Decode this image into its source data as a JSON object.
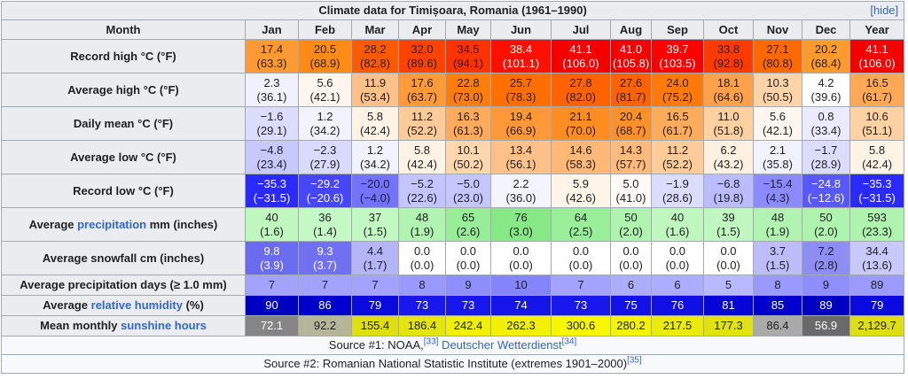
{
  "title": "Climate data for Timișoara, Romania (1961–1990)",
  "hide_label": "[hide]",
  "header": {
    "first": "Month",
    "months": [
      "Jan",
      "Feb",
      "Mar",
      "Apr",
      "May",
      "Jun",
      "Jul",
      "Aug",
      "Sep",
      "Oct",
      "Nov",
      "Dec",
      "Year"
    ]
  },
  "rows": [
    {
      "label_pre": "Record high °C (°F)",
      "label_link": "",
      "label_post": "",
      "two_line": true,
      "cells": [
        {
          "v": "17.4",
          "s": "(63.3)",
          "bg": "#ff9933",
          "fg": "#202122"
        },
        {
          "v": "20.5",
          "s": "(68.9)",
          "bg": "#ff8a15",
          "fg": "#202122"
        },
        {
          "v": "28.2",
          "s": "(82.8)",
          "bg": "#ff5a00",
          "fg": "#202122"
        },
        {
          "v": "32.0",
          "s": "(89.6)",
          "bg": "#ff4200",
          "fg": "#202122"
        },
        {
          "v": "34.5",
          "s": "(94.1)",
          "bg": "#ff3300",
          "fg": "#202122"
        },
        {
          "v": "38.4",
          "s": "(101.1)",
          "bg": "#ff1000",
          "fg": "#ffffff"
        },
        {
          "v": "41.1",
          "s": "(106.0)",
          "bg": "#f40000",
          "fg": "#ffffff"
        },
        {
          "v": "41.0",
          "s": "(105.8)",
          "bg": "#f40000",
          "fg": "#ffffff"
        },
        {
          "v": "39.7",
          "s": "(103.5)",
          "bg": "#fe0000",
          "fg": "#ffffff"
        },
        {
          "v": "33.8",
          "s": "(92.8)",
          "bg": "#ff3a00",
          "fg": "#202122"
        },
        {
          "v": "27.1",
          "s": "(80.8)",
          "bg": "#ff6a00",
          "fg": "#202122"
        },
        {
          "v": "20.2",
          "s": "(68.4)",
          "bg": "#ff9a2e",
          "fg": "#202122"
        },
        {
          "v": "41.1",
          "s": "(106.0)",
          "bg": "#f40000",
          "fg": "#ffffff"
        }
      ]
    },
    {
      "label_pre": "Average high °C (°F)",
      "label_link": "",
      "label_post": "",
      "two_line": true,
      "cells": [
        {
          "v": "2.3",
          "s": "(36.1)",
          "bg": "#f0f0ff",
          "fg": "#202122"
        },
        {
          "v": "5.6",
          "s": "(42.1)",
          "bg": "#fff6ef",
          "fg": "#202122"
        },
        {
          "v": "11.9",
          "s": "(53.4)",
          "bg": "#ffc08a",
          "fg": "#202122"
        },
        {
          "v": "17.6",
          "s": "(63.7)",
          "bg": "#ff9a3a",
          "fg": "#202122"
        },
        {
          "v": "22.8",
          "s": "(73.0)",
          "bg": "#ff7d0c",
          "fg": "#202122"
        },
        {
          "v": "25.7",
          "s": "(78.3)",
          "bg": "#ff6f00",
          "fg": "#202122"
        },
        {
          "v": "27.8",
          "s": "(82.0)",
          "bg": "#ff6200",
          "fg": "#202122"
        },
        {
          "v": "27.6",
          "s": "(81.7)",
          "bg": "#ff6300",
          "fg": "#202122"
        },
        {
          "v": "24.0",
          "s": "(75.2)",
          "bg": "#ff7a09",
          "fg": "#202122"
        },
        {
          "v": "18.1",
          "s": "(64.6)",
          "bg": "#ffa04a",
          "fg": "#202122"
        },
        {
          "v": "10.3",
          "s": "(50.5)",
          "bg": "#ffd3a8",
          "fg": "#202122"
        },
        {
          "v": "4.2",
          "s": "(39.6)",
          "bg": "#ffffff",
          "fg": "#202122"
        },
        {
          "v": "16.5",
          "s": "(61.7)",
          "bg": "#ffa956",
          "fg": "#202122"
        }
      ]
    },
    {
      "label_pre": "Daily mean °C (°F)",
      "label_link": "",
      "label_post": "",
      "two_line": true,
      "cells": [
        {
          "v": "−1.6",
          "s": "(29.1)",
          "bg": "#dcdcff",
          "fg": "#202122"
        },
        {
          "v": "1.2",
          "s": "(34.2)",
          "bg": "#f2f2ff",
          "fg": "#202122"
        },
        {
          "v": "5.8",
          "s": "(42.4)",
          "bg": "#fff3e6",
          "fg": "#202122"
        },
        {
          "v": "11.2",
          "s": "(52.2)",
          "bg": "#ffcc99",
          "fg": "#202122"
        },
        {
          "v": "16.3",
          "s": "(61.3)",
          "bg": "#ffab5d",
          "fg": "#202122"
        },
        {
          "v": "19.4",
          "s": "(66.9)",
          "bg": "#ff9838",
          "fg": "#202122"
        },
        {
          "v": "21.1",
          "s": "(70.0)",
          "bg": "#ff8d22",
          "fg": "#202122"
        },
        {
          "v": "20.4",
          "s": "(68.7)",
          "bg": "#ff912b",
          "fg": "#202122"
        },
        {
          "v": "16.5",
          "s": "(61.7)",
          "bg": "#ffab5c",
          "fg": "#202122"
        },
        {
          "v": "11.0",
          "s": "(51.8)",
          "bg": "#ffd0a0",
          "fg": "#202122"
        },
        {
          "v": "5.6",
          "s": "(42.1)",
          "bg": "#fff7ef",
          "fg": "#202122"
        },
        {
          "v": "0.8",
          "s": "(33.4)",
          "bg": "#ebebff",
          "fg": "#202122"
        },
        {
          "v": "10.6",
          "s": "(51.1)",
          "bg": "#ffd1a3",
          "fg": "#202122"
        }
      ]
    },
    {
      "label_pre": "Average low °C (°F)",
      "label_link": "",
      "label_post": "",
      "two_line": true,
      "cells": [
        {
          "v": "−4.8",
          "s": "(23.4)",
          "bg": "#c8c8ff",
          "fg": "#202122"
        },
        {
          "v": "−2.3",
          "s": "(27.9)",
          "bg": "#dadaff",
          "fg": "#202122"
        },
        {
          "v": "1.2",
          "s": "(34.2)",
          "bg": "#f2f2ff",
          "fg": "#202122"
        },
        {
          "v": "5.8",
          "s": "(42.4)",
          "bg": "#fff3e6",
          "fg": "#202122"
        },
        {
          "v": "10.1",
          "s": "(50.2)",
          "bg": "#ffd6ad",
          "fg": "#202122"
        },
        {
          "v": "13.4",
          "s": "(56.1)",
          "bg": "#ffc08a",
          "fg": "#202122"
        },
        {
          "v": "14.6",
          "s": "(58.3)",
          "bg": "#ffb878",
          "fg": "#202122"
        },
        {
          "v": "14.3",
          "s": "(57.7)",
          "bg": "#ffba7c",
          "fg": "#202122"
        },
        {
          "v": "11.2",
          "s": "(52.2)",
          "bg": "#ffcc99",
          "fg": "#202122"
        },
        {
          "v": "6.2",
          "s": "(43.2)",
          "bg": "#fff1e2",
          "fg": "#202122"
        },
        {
          "v": "2.1",
          "s": "(35.8)",
          "bg": "#f2f2ff",
          "fg": "#202122"
        },
        {
          "v": "−1.7",
          "s": "(28.9)",
          "bg": "#dcdcff",
          "fg": "#202122"
        },
        {
          "v": "5.8",
          "s": "(42.4)",
          "bg": "#fff3e6",
          "fg": "#202122"
        }
      ]
    },
    {
      "label_pre": "Record low °C (°F)",
      "label_link": "",
      "label_post": "",
      "two_line": true,
      "cells": [
        {
          "v": "−35.3",
          "s": "(−31.5)",
          "bg": "#2a2aff",
          "fg": "#ffffff"
        },
        {
          "v": "−29.2",
          "s": "(−20.6)",
          "bg": "#4646ff",
          "fg": "#ffffff"
        },
        {
          "v": "−20.0",
          "s": "(−4.0)",
          "bg": "#7373ff",
          "fg": "#202122"
        },
        {
          "v": "−5.2",
          "s": "(22.6)",
          "bg": "#c4c4ff",
          "fg": "#202122"
        },
        {
          "v": "−5.0",
          "s": "(23.0)",
          "bg": "#c6c6ff",
          "fg": "#202122"
        },
        {
          "v": "2.2",
          "s": "(36.0)",
          "bg": "#f4f4ff",
          "fg": "#202122"
        },
        {
          "v": "5.9",
          "s": "(42.6)",
          "bg": "#fff4e8",
          "fg": "#202122"
        },
        {
          "v": "5.0",
          "s": "(41.0)",
          "bg": "#fffaf5",
          "fg": "#202122"
        },
        {
          "v": "−1.9",
          "s": "(28.6)",
          "bg": "#dcdcff",
          "fg": "#202122"
        },
        {
          "v": "−6.8",
          "s": "(19.8)",
          "bg": "#bbbbff",
          "fg": "#202122"
        },
        {
          "v": "−15.4",
          "s": "(4.3)",
          "bg": "#8b8bff",
          "fg": "#202122"
        },
        {
          "v": "−24.8",
          "s": "(−12.6)",
          "bg": "#5858ff",
          "fg": "#ffffff"
        },
        {
          "v": "−35.3",
          "s": "(−31.5)",
          "bg": "#2a2aff",
          "fg": "#ffffff"
        }
      ]
    },
    {
      "label_pre": "Average ",
      "label_link": "precipitation",
      "label_post": " mm (inches)",
      "two_line": true,
      "cells": [
        {
          "v": "40",
          "s": "(1.6)",
          "bg": "#bff7bf",
          "fg": "#202122"
        },
        {
          "v": "36",
          "s": "(1.4)",
          "bg": "#c4f8c4",
          "fg": "#202122"
        },
        {
          "v": "37",
          "s": "(1.5)",
          "bg": "#c2f8c2",
          "fg": "#202122"
        },
        {
          "v": "48",
          "s": "(1.9)",
          "bg": "#b1f4b1",
          "fg": "#202122"
        },
        {
          "v": "65",
          "s": "(2.6)",
          "bg": "#98ee98",
          "fg": "#202122"
        },
        {
          "v": "76",
          "s": "(3.0)",
          "bg": "#86e986",
          "fg": "#202122"
        },
        {
          "v": "64",
          "s": "(2.5)",
          "bg": "#99ee99",
          "fg": "#202122"
        },
        {
          "v": "50",
          "s": "(2.0)",
          "bg": "#aef3ae",
          "fg": "#202122"
        },
        {
          "v": "40",
          "s": "(1.6)",
          "bg": "#bff7bf",
          "fg": "#202122"
        },
        {
          "v": "39",
          "s": "(1.5)",
          "bg": "#c0f7c0",
          "fg": "#202122"
        },
        {
          "v": "48",
          "s": "(1.9)",
          "bg": "#b1f4b1",
          "fg": "#202122"
        },
        {
          "v": "50",
          "s": "(2.0)",
          "bg": "#aef3ae",
          "fg": "#202122"
        },
        {
          "v": "593",
          "s": "(23.3)",
          "bg": "#aef3ae",
          "fg": "#202122"
        }
      ]
    },
    {
      "label_pre": "Average snowfall cm (inches)",
      "label_link": "",
      "label_post": "",
      "two_line": true,
      "cells": [
        {
          "v": "9.8",
          "s": "(3.9)",
          "bg": "#6b6bf0",
          "fg": "#ffffff"
        },
        {
          "v": "9.3",
          "s": "(3.7)",
          "bg": "#7070f1",
          "fg": "#ffffff"
        },
        {
          "v": "4.4",
          "s": "(1.7)",
          "bg": "#b4b4f8",
          "fg": "#202122"
        },
        {
          "v": "0.0",
          "s": "(0.0)",
          "bg": "#ffffff",
          "fg": "#202122"
        },
        {
          "v": "0.0",
          "s": "(0.0)",
          "bg": "#ffffff",
          "fg": "#202122"
        },
        {
          "v": "0.0",
          "s": "(0.0)",
          "bg": "#ffffff",
          "fg": "#202122"
        },
        {
          "v": "0.0",
          "s": "(0.0)",
          "bg": "#ffffff",
          "fg": "#202122"
        },
        {
          "v": "0.0",
          "s": "(0.0)",
          "bg": "#ffffff",
          "fg": "#202122"
        },
        {
          "v": "0.0",
          "s": "(0.0)",
          "bg": "#ffffff",
          "fg": "#202122"
        },
        {
          "v": "0.0",
          "s": "(0.0)",
          "bg": "#ffffff",
          "fg": "#202122"
        },
        {
          "v": "3.7",
          "s": "(1.5)",
          "bg": "#bdbdf9",
          "fg": "#202122"
        },
        {
          "v": "7.2",
          "s": "(2.8)",
          "bg": "#8d8df4",
          "fg": "#202122"
        },
        {
          "v": "34.4",
          "s": "(13.6)",
          "bg": "#c8c8fa",
          "fg": "#202122"
        }
      ]
    },
    {
      "label_pre": "Average precipitation days (≥ 1.0 mm)",
      "label_link": "",
      "label_post": "",
      "two_line": false,
      "cells": [
        {
          "v": "7",
          "s": "",
          "bg": "#a3a3ff",
          "fg": "#202122"
        },
        {
          "v": "7",
          "s": "",
          "bg": "#a3a3ff",
          "fg": "#202122"
        },
        {
          "v": "7",
          "s": "",
          "bg": "#a3a3ff",
          "fg": "#202122"
        },
        {
          "v": "8",
          "s": "",
          "bg": "#9999ff",
          "fg": "#202122"
        },
        {
          "v": "9",
          "s": "",
          "bg": "#8e8eff",
          "fg": "#202122"
        },
        {
          "v": "10",
          "s": "",
          "bg": "#8484ff",
          "fg": "#202122"
        },
        {
          "v": "7",
          "s": "",
          "bg": "#a3a3ff",
          "fg": "#202122"
        },
        {
          "v": "6",
          "s": "",
          "bg": "#adadff",
          "fg": "#202122"
        },
        {
          "v": "6",
          "s": "",
          "bg": "#adadff",
          "fg": "#202122"
        },
        {
          "v": "5",
          "s": "",
          "bg": "#b8b8ff",
          "fg": "#202122"
        },
        {
          "v": "8",
          "s": "",
          "bg": "#9999ff",
          "fg": "#202122"
        },
        {
          "v": "9",
          "s": "",
          "bg": "#8e8eff",
          "fg": "#202122"
        },
        {
          "v": "89",
          "s": "",
          "bg": "#9a9aff",
          "fg": "#202122"
        }
      ]
    },
    {
      "label_pre": "Average ",
      "label_link": "relative humidity",
      "label_post": " (%)",
      "two_line": false,
      "cells": [
        {
          "v": "90",
          "s": "",
          "bg": "#0000c0",
          "fg": "#ffffff"
        },
        {
          "v": "86",
          "s": "",
          "bg": "#0000cc",
          "fg": "#ffffff"
        },
        {
          "v": "79",
          "s": "",
          "bg": "#0a0ae0",
          "fg": "#ffffff"
        },
        {
          "v": "73",
          "s": "",
          "bg": "#1818ec",
          "fg": "#ffffff"
        },
        {
          "v": "73",
          "s": "",
          "bg": "#1818ec",
          "fg": "#ffffff"
        },
        {
          "v": "74",
          "s": "",
          "bg": "#1515ea",
          "fg": "#ffffff"
        },
        {
          "v": "73",
          "s": "",
          "bg": "#1818ec",
          "fg": "#ffffff"
        },
        {
          "v": "75",
          "s": "",
          "bg": "#1212e8",
          "fg": "#ffffff"
        },
        {
          "v": "76",
          "s": "",
          "bg": "#1010e6",
          "fg": "#ffffff"
        },
        {
          "v": "81",
          "s": "",
          "bg": "#0505d8",
          "fg": "#ffffff"
        },
        {
          "v": "85",
          "s": "",
          "bg": "#0000ce",
          "fg": "#ffffff"
        },
        {
          "v": "89",
          "s": "",
          "bg": "#0000c3",
          "fg": "#ffffff"
        },
        {
          "v": "79",
          "s": "",
          "bg": "#0a0ae0",
          "fg": "#ffffff"
        }
      ]
    },
    {
      "label_pre": "Mean monthly ",
      "label_link": "sunshine hours",
      "label_post": "",
      "two_line": false,
      "cells": [
        {
          "v": "72.1",
          "s": "",
          "bg": "#858585",
          "fg": "#ffffff"
        },
        {
          "v": "92.2",
          "s": "",
          "bg": "#b5b59a",
          "fg": "#202122"
        },
        {
          "v": "155.4",
          "s": "",
          "bg": "#dede10",
          "fg": "#202122"
        },
        {
          "v": "186.4",
          "s": "",
          "bg": "#e4e40f",
          "fg": "#202122"
        },
        {
          "v": "242.4",
          "s": "",
          "bg": "#f0f000",
          "fg": "#202122"
        },
        {
          "v": "262.3",
          "s": "",
          "bg": "#f2f200",
          "fg": "#202122"
        },
        {
          "v": "300.6",
          "s": "",
          "bg": "#f7f700",
          "fg": "#202122"
        },
        {
          "v": "280.2",
          "s": "",
          "bg": "#f4f400",
          "fg": "#202122"
        },
        {
          "v": "217.5",
          "s": "",
          "bg": "#ebeb08",
          "fg": "#202122"
        },
        {
          "v": "177.3",
          "s": "",
          "bg": "#e2e20f",
          "fg": "#202122"
        },
        {
          "v": "86.4",
          "s": "",
          "bg": "#aaaaaa",
          "fg": "#202122"
        },
        {
          "v": "56.9",
          "s": "",
          "bg": "#6a6a6a",
          "fg": "#ffffff"
        },
        {
          "v": "2,129.7",
          "s": "",
          "bg": "#dede10",
          "fg": "#202122"
        }
      ]
    }
  ],
  "sources": [
    {
      "pre": "Source #1: NOAA,",
      "sup1": "[33]",
      "link": " Deutscher Wetterdienst",
      "sup2": "[34]"
    },
    {
      "pre": "Source #2: Romanian National Statistic Institute (extremes 1901–2000)",
      "sup1": "[35]",
      "link": "",
      "sup2": ""
    }
  ]
}
